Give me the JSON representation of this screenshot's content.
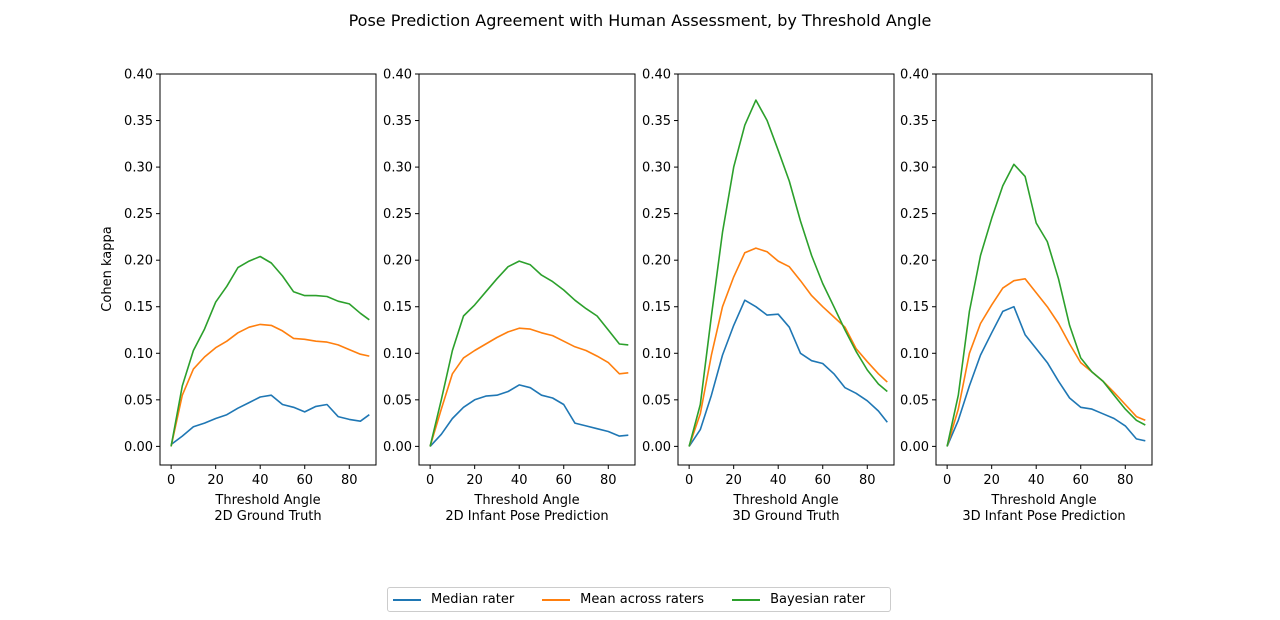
{
  "figure_title": "Pose Prediction Agreement with Human Assessment, by Threshold Angle",
  "legend": {
    "placement": "bottom-center",
    "entries": [
      {
        "name": "Median rater",
        "color": "#1f77b4"
      },
      {
        "name": "Mean across raters",
        "color": "#ff7f0e"
      },
      {
        "name": "Bayesian rater",
        "color": "#2ca02c"
      }
    ]
  },
  "chart_data": [
    {
      "type": "line",
      "xlabel": "Threshold Angle\n2D Ground Truth",
      "ylabel": "Cohen kappa",
      "xlim": [
        -5,
        92
      ],
      "ylim": [
        -0.02,
        0.4
      ],
      "xticks": [
        0,
        20,
        40,
        60,
        80
      ],
      "yticks": [
        "0.00",
        "0.05",
        "0.10",
        "0.15",
        "0.20",
        "0.25",
        "0.30",
        "0.35",
        "0.40"
      ],
      "grid": false,
      "x": [
        0,
        5,
        10,
        15,
        20,
        25,
        30,
        35,
        40,
        45,
        50,
        55,
        60,
        65,
        70,
        75,
        80,
        85,
        89
      ],
      "series": [
        {
          "name": "Median rater",
          "values": [
            0.002,
            0.011,
            0.021,
            0.025,
            0.03,
            0.034,
            0.041,
            0.047,
            0.053,
            0.055,
            0.045,
            0.042,
            0.037,
            0.043,
            0.045,
            0.032,
            0.029,
            0.027,
            0.034
          ]
        },
        {
          "name": "Mean across raters",
          "values": [
            0.0,
            0.055,
            0.083,
            0.096,
            0.106,
            0.113,
            0.122,
            0.128,
            0.131,
            0.13,
            0.124,
            0.116,
            0.115,
            0.113,
            0.112,
            0.109,
            0.104,
            0.099,
            0.097
          ]
        },
        {
          "name": "Bayesian rater",
          "values": [
            0.0,
            0.065,
            0.103,
            0.126,
            0.155,
            0.172,
            0.192,
            0.199,
            0.204,
            0.197,
            0.183,
            0.166,
            0.162,
            0.162,
            0.161,
            0.156,
            0.153,
            0.143,
            0.136
          ]
        }
      ]
    },
    {
      "type": "line",
      "xlabel": "Threshold Angle\n2D Infant Pose Prediction",
      "ylabel": "",
      "xlim": [
        -5,
        92
      ],
      "ylim": [
        -0.02,
        0.4
      ],
      "xticks": [
        0,
        20,
        40,
        60,
        80
      ],
      "yticks": [
        "0.00",
        "0.05",
        "0.10",
        "0.15",
        "0.20",
        "0.25",
        "0.30",
        "0.35",
        "0.40"
      ],
      "grid": false,
      "x": [
        0,
        5,
        10,
        15,
        20,
        25,
        30,
        35,
        40,
        45,
        50,
        55,
        60,
        65,
        70,
        75,
        80,
        85,
        89
      ],
      "series": [
        {
          "name": "Median rater",
          "values": [
            0.0,
            0.013,
            0.03,
            0.042,
            0.05,
            0.054,
            0.055,
            0.059,
            0.066,
            0.063,
            0.055,
            0.052,
            0.045,
            0.025,
            0.022,
            0.019,
            0.016,
            0.011,
            0.012
          ]
        },
        {
          "name": "Mean across raters",
          "values": [
            0.0,
            0.04,
            0.078,
            0.095,
            0.103,
            0.11,
            0.117,
            0.123,
            0.127,
            0.126,
            0.122,
            0.119,
            0.113,
            0.107,
            0.103,
            0.097,
            0.09,
            0.078,
            0.079
          ]
        },
        {
          "name": "Bayesian rater",
          "values": [
            0.0,
            0.05,
            0.103,
            0.14,
            0.152,
            0.166,
            0.18,
            0.193,
            0.199,
            0.195,
            0.184,
            0.177,
            0.168,
            0.157,
            0.148,
            0.14,
            0.125,
            0.11,
            0.109
          ]
        }
      ]
    },
    {
      "type": "line",
      "xlabel": "Threshold Angle\n3D Ground Truth",
      "ylabel": "",
      "xlim": [
        -5,
        92
      ],
      "ylim": [
        -0.02,
        0.4
      ],
      "xticks": [
        0,
        20,
        40,
        60,
        80
      ],
      "yticks": [
        "0.00",
        "0.05",
        "0.10",
        "0.15",
        "0.20",
        "0.25",
        "0.30",
        "0.35",
        "0.40"
      ],
      "grid": false,
      "x": [
        0,
        5,
        10,
        15,
        20,
        25,
        30,
        35,
        40,
        45,
        50,
        55,
        60,
        65,
        70,
        75,
        80,
        85,
        89
      ],
      "series": [
        {
          "name": "Median rater",
          "values": [
            0.0,
            0.018,
            0.055,
            0.098,
            0.13,
            0.157,
            0.15,
            0.141,
            0.142,
            0.128,
            0.1,
            0.092,
            0.089,
            0.078,
            0.063,
            0.057,
            0.049,
            0.038,
            0.026
          ]
        },
        {
          "name": "Mean across raters",
          "values": [
            0.0,
            0.035,
            0.098,
            0.15,
            0.182,
            0.208,
            0.213,
            0.209,
            0.199,
            0.193,
            0.178,
            0.162,
            0.15,
            0.139,
            0.128,
            0.105,
            0.091,
            0.078,
            0.069
          ]
        },
        {
          "name": "Bayesian rater",
          "values": [
            0.0,
            0.045,
            0.14,
            0.23,
            0.3,
            0.345,
            0.372,
            0.35,
            0.318,
            0.285,
            0.242,
            0.205,
            0.175,
            0.15,
            0.125,
            0.102,
            0.082,
            0.067,
            0.059
          ]
        }
      ]
    },
    {
      "type": "line",
      "xlabel": "Threshold Angle\n3D Infant Pose Prediction",
      "ylabel": "",
      "xlim": [
        -5,
        92
      ],
      "ylim": [
        -0.02,
        0.4
      ],
      "xticks": [
        0,
        20,
        40,
        60,
        80
      ],
      "yticks": [
        "0.00",
        "0.05",
        "0.10",
        "0.15",
        "0.20",
        "0.25",
        "0.30",
        "0.35",
        "0.40"
      ],
      "grid": false,
      "x": [
        0,
        5,
        10,
        15,
        20,
        25,
        30,
        35,
        40,
        45,
        50,
        55,
        60,
        65,
        70,
        75,
        80,
        85,
        89
      ],
      "series": [
        {
          "name": "Median rater",
          "values": [
            0.0,
            0.028,
            0.065,
            0.098,
            0.122,
            0.145,
            0.15,
            0.12,
            0.105,
            0.09,
            0.07,
            0.052,
            0.042,
            0.04,
            0.035,
            0.03,
            0.022,
            0.008,
            0.006
          ]
        },
        {
          "name": "Mean across raters",
          "values": [
            0.0,
            0.04,
            0.1,
            0.132,
            0.152,
            0.17,
            0.178,
            0.18,
            0.165,
            0.15,
            0.132,
            0.11,
            0.09,
            0.08,
            0.07,
            0.058,
            0.045,
            0.032,
            0.028
          ]
        },
        {
          "name": "Bayesian rater",
          "values": [
            0.0,
            0.055,
            0.145,
            0.205,
            0.245,
            0.28,
            0.303,
            0.29,
            0.24,
            0.22,
            0.18,
            0.13,
            0.095,
            0.08,
            0.07,
            0.055,
            0.04,
            0.028,
            0.023
          ]
        }
      ]
    }
  ]
}
